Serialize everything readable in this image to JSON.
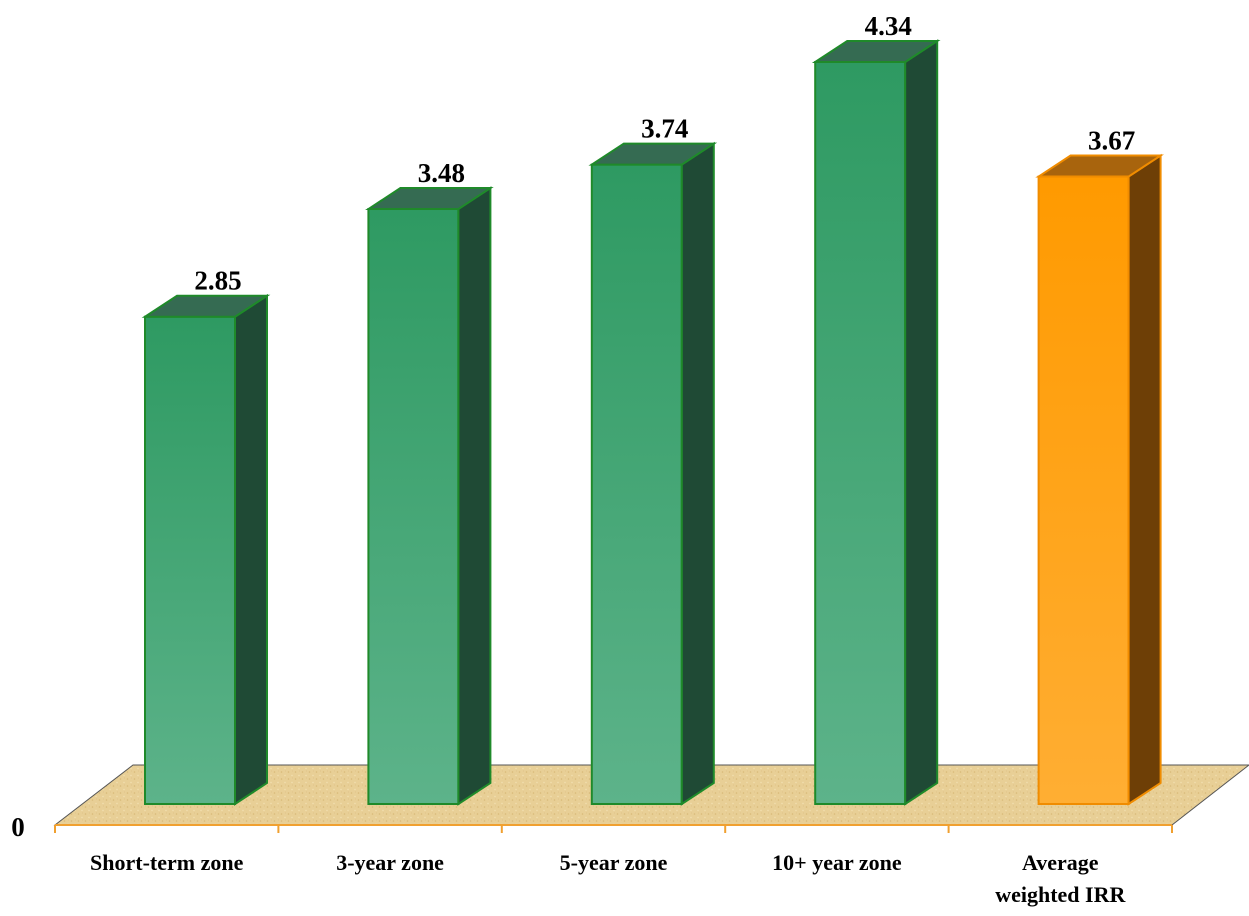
{
  "chart_data": {
    "type": "bar",
    "style": "3d-column",
    "categories": [
      [
        "Short-term zone"
      ],
      [
        "3-year zone"
      ],
      [
        "5-year zone"
      ],
      [
        "10+ year zone"
      ],
      [
        "Average",
        "weighted IRR"
      ]
    ],
    "values": [
      2.85,
      3.48,
      3.74,
      4.34,
      3.67
    ],
    "value_labels": [
      "2.85",
      "3.48",
      "3.74",
      "4.34",
      "3.67"
    ],
    "y_tick_labels": [
      "0"
    ],
    "ylim": [
      0,
      4.34
    ],
    "grid": false,
    "legend": "none",
    "title": "",
    "xlabel": "",
    "ylabel": "",
    "colors": {
      "bar": "#2e9a62",
      "bar_highlight": "#ff9a00",
      "floor": "#e8cf96",
      "axis": "#f0a030"
    }
  }
}
